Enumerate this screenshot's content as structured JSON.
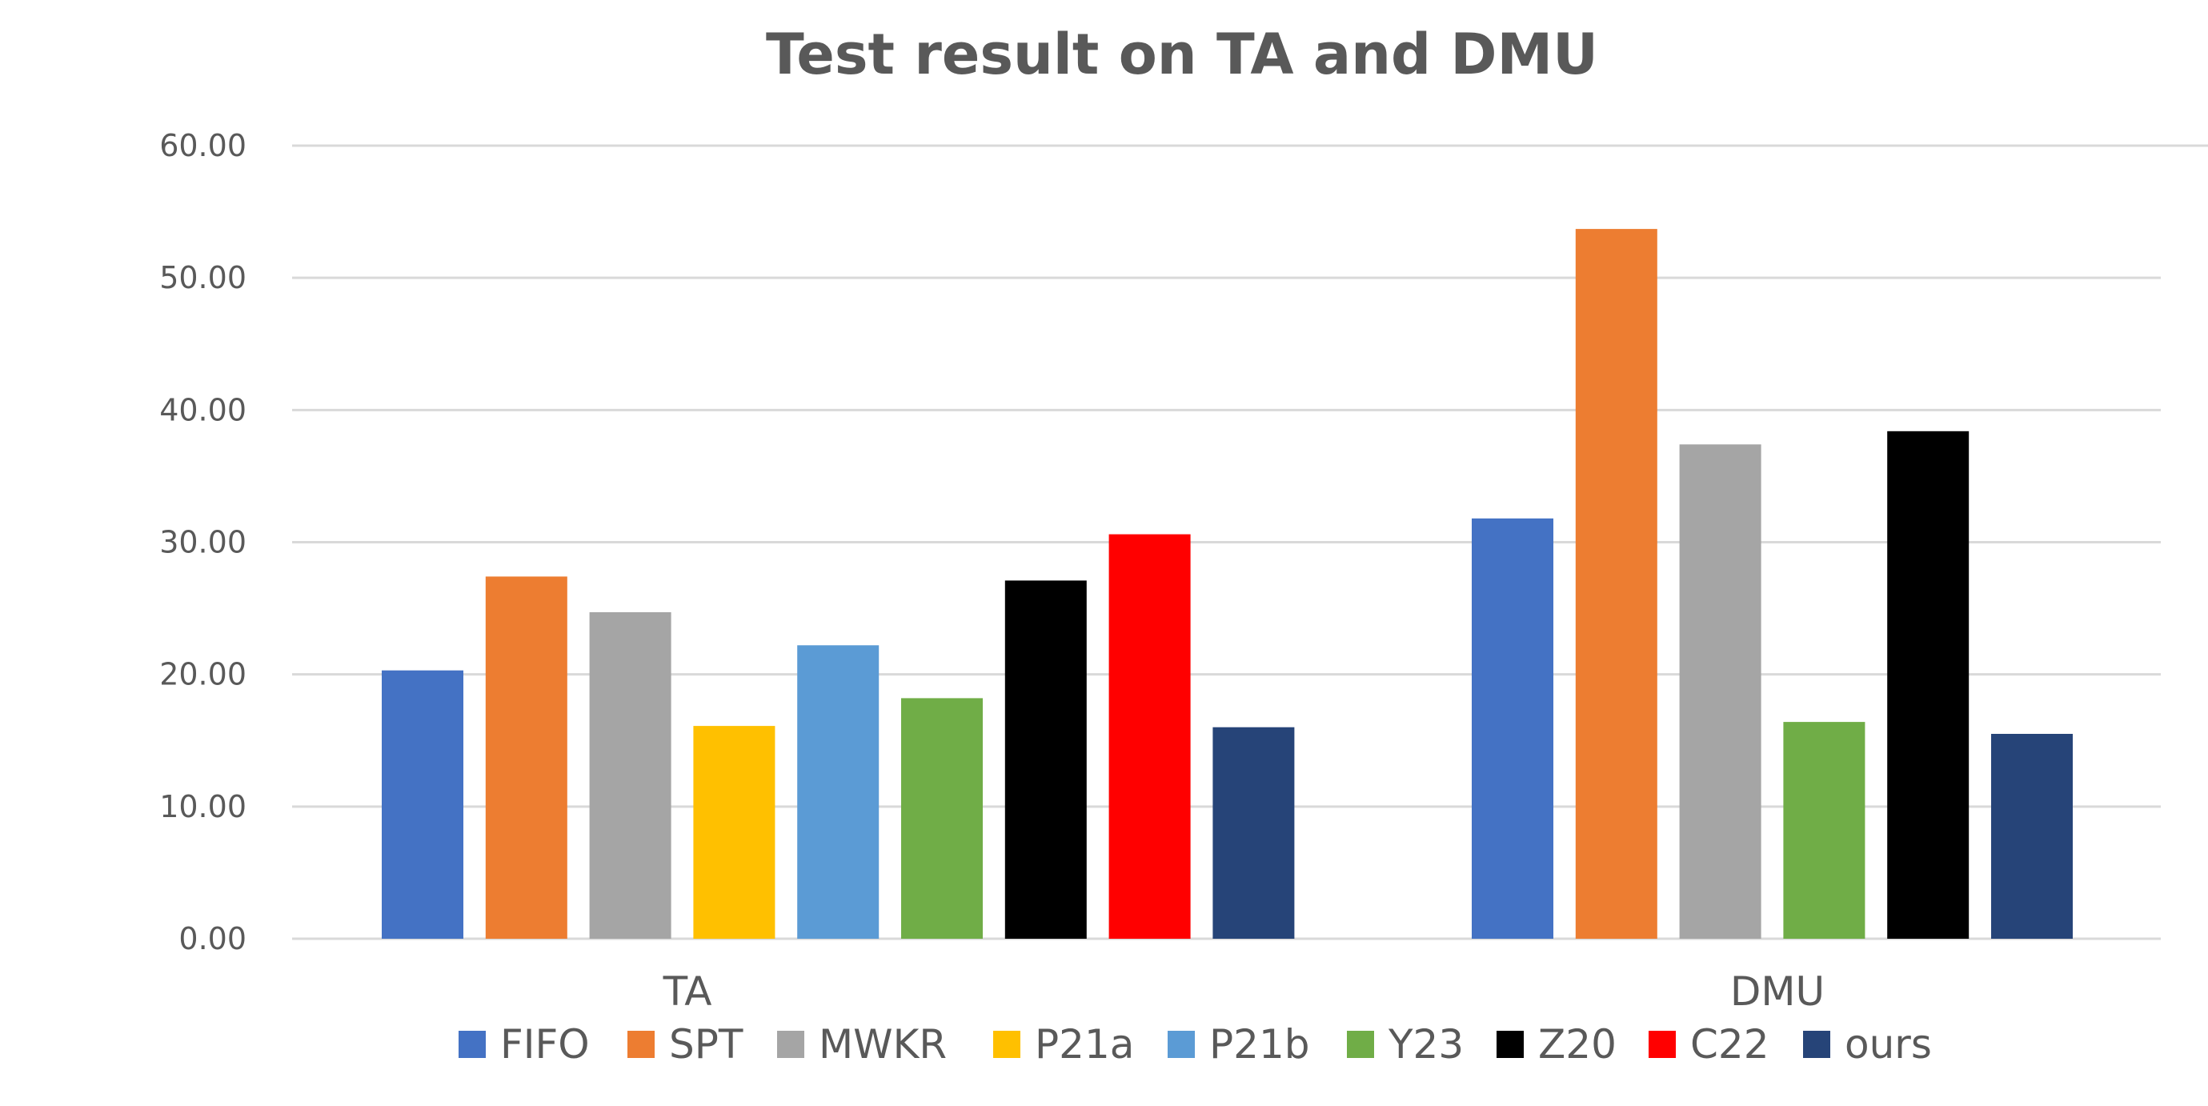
{
  "chart_data": {
    "type": "bar",
    "title": "Test result on TA and DMU",
    "xlabel": "",
    "ylabel": "",
    "ylim": [
      0,
      60
    ],
    "yticks": [
      "0.00",
      "10.00",
      "20.00",
      "30.00",
      "40.00",
      "50.00",
      "60.00"
    ],
    "grid": true,
    "legend_position": "bottom",
    "categories": [
      "TA",
      "DMU"
    ],
    "series": [
      {
        "name": "FIFO",
        "color": "#4472C4",
        "values": [
          20.3,
          31.8
        ]
      },
      {
        "name": "SPT",
        "color": "#ED7D31",
        "values": [
          27.4,
          53.7
        ]
      },
      {
        "name": "MWKR",
        "color": "#A5A5A5",
        "values": [
          24.7,
          37.4
        ]
      },
      {
        "name": "P21a",
        "color": "#FFC000",
        "values": [
          16.1,
          null
        ]
      },
      {
        "name": "P21b",
        "color": "#5B9BD5",
        "values": [
          22.2,
          null
        ]
      },
      {
        "name": "Y23",
        "color": "#70AD47",
        "values": [
          18.2,
          16.4
        ]
      },
      {
        "name": "Z20",
        "color": "#000000",
        "values": [
          27.1,
          38.4
        ]
      },
      {
        "name": "C22",
        "color": "#FF0000",
        "values": [
          30.6,
          null
        ]
      },
      {
        "name": "ours",
        "color": "#264478",
        "values": [
          16.0,
          15.5
        ]
      }
    ]
  }
}
